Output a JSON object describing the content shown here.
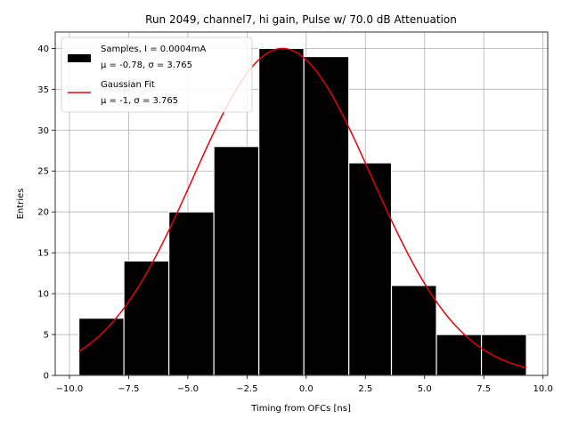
{
  "chart_data": {
    "type": "bar",
    "title": "Run 2049, channel7, hi gain, Pulse w/ 70.0 dB Attenuation",
    "xlabel": "Timing from OFCs [ns]",
    "ylabel": "Entries",
    "xlim": [
      -10.6,
      10.2
    ],
    "ylim": [
      0,
      42
    ],
    "xticks": [
      -10.0,
      -7.5,
      -5.0,
      -2.5,
      0.0,
      2.5,
      5.0,
      7.5,
      10.0
    ],
    "xtick_labels": [
      "−10.0",
      "−7.5",
      "−5.0",
      "−2.5",
      "0.0",
      "2.5",
      "5.0",
      "7.5",
      "10.0"
    ],
    "yticks": [
      0,
      5,
      10,
      15,
      20,
      25,
      30,
      35,
      40
    ],
    "ytick_labels": [
      "0",
      "5",
      "10",
      "15",
      "20",
      "25",
      "30",
      "35",
      "40"
    ],
    "grid": true,
    "legend_position": "top-left",
    "bins": [
      {
        "x0": -9.6,
        "x1": -7.7,
        "count": 7
      },
      {
        "x0": -7.7,
        "x1": -5.8,
        "count": 14
      },
      {
        "x0": -5.8,
        "x1": -3.9,
        "count": 20
      },
      {
        "x0": -3.9,
        "x1": -2.0,
        "count": 28
      },
      {
        "x0": -2.0,
        "x1": -0.1,
        "count": 40
      },
      {
        "x0": -0.1,
        "x1": 1.8,
        "count": 39
      },
      {
        "x0": 1.8,
        "x1": 3.6,
        "count": 26
      },
      {
        "x0": 3.6,
        "x1": 5.5,
        "count": 11
      },
      {
        "x0": 5.5,
        "x1": 7.4,
        "count": 5
      },
      {
        "x0": 7.4,
        "x1": 9.3,
        "count": 5
      }
    ],
    "series": [
      {
        "name": "Samples, I = 0.0004mA",
        "stats": "μ = -0.78, σ = 3.765",
        "color": "#000000",
        "kind": "histogram"
      },
      {
        "name": "Gaussian Fit",
        "stats": "μ = -1, σ = 3.765",
        "color": "#e8000b",
        "kind": "line",
        "mu": -1,
        "sigma": 3.765,
        "amplitude": 40,
        "x_range": [
          -9.6,
          9.3
        ]
      }
    ]
  }
}
